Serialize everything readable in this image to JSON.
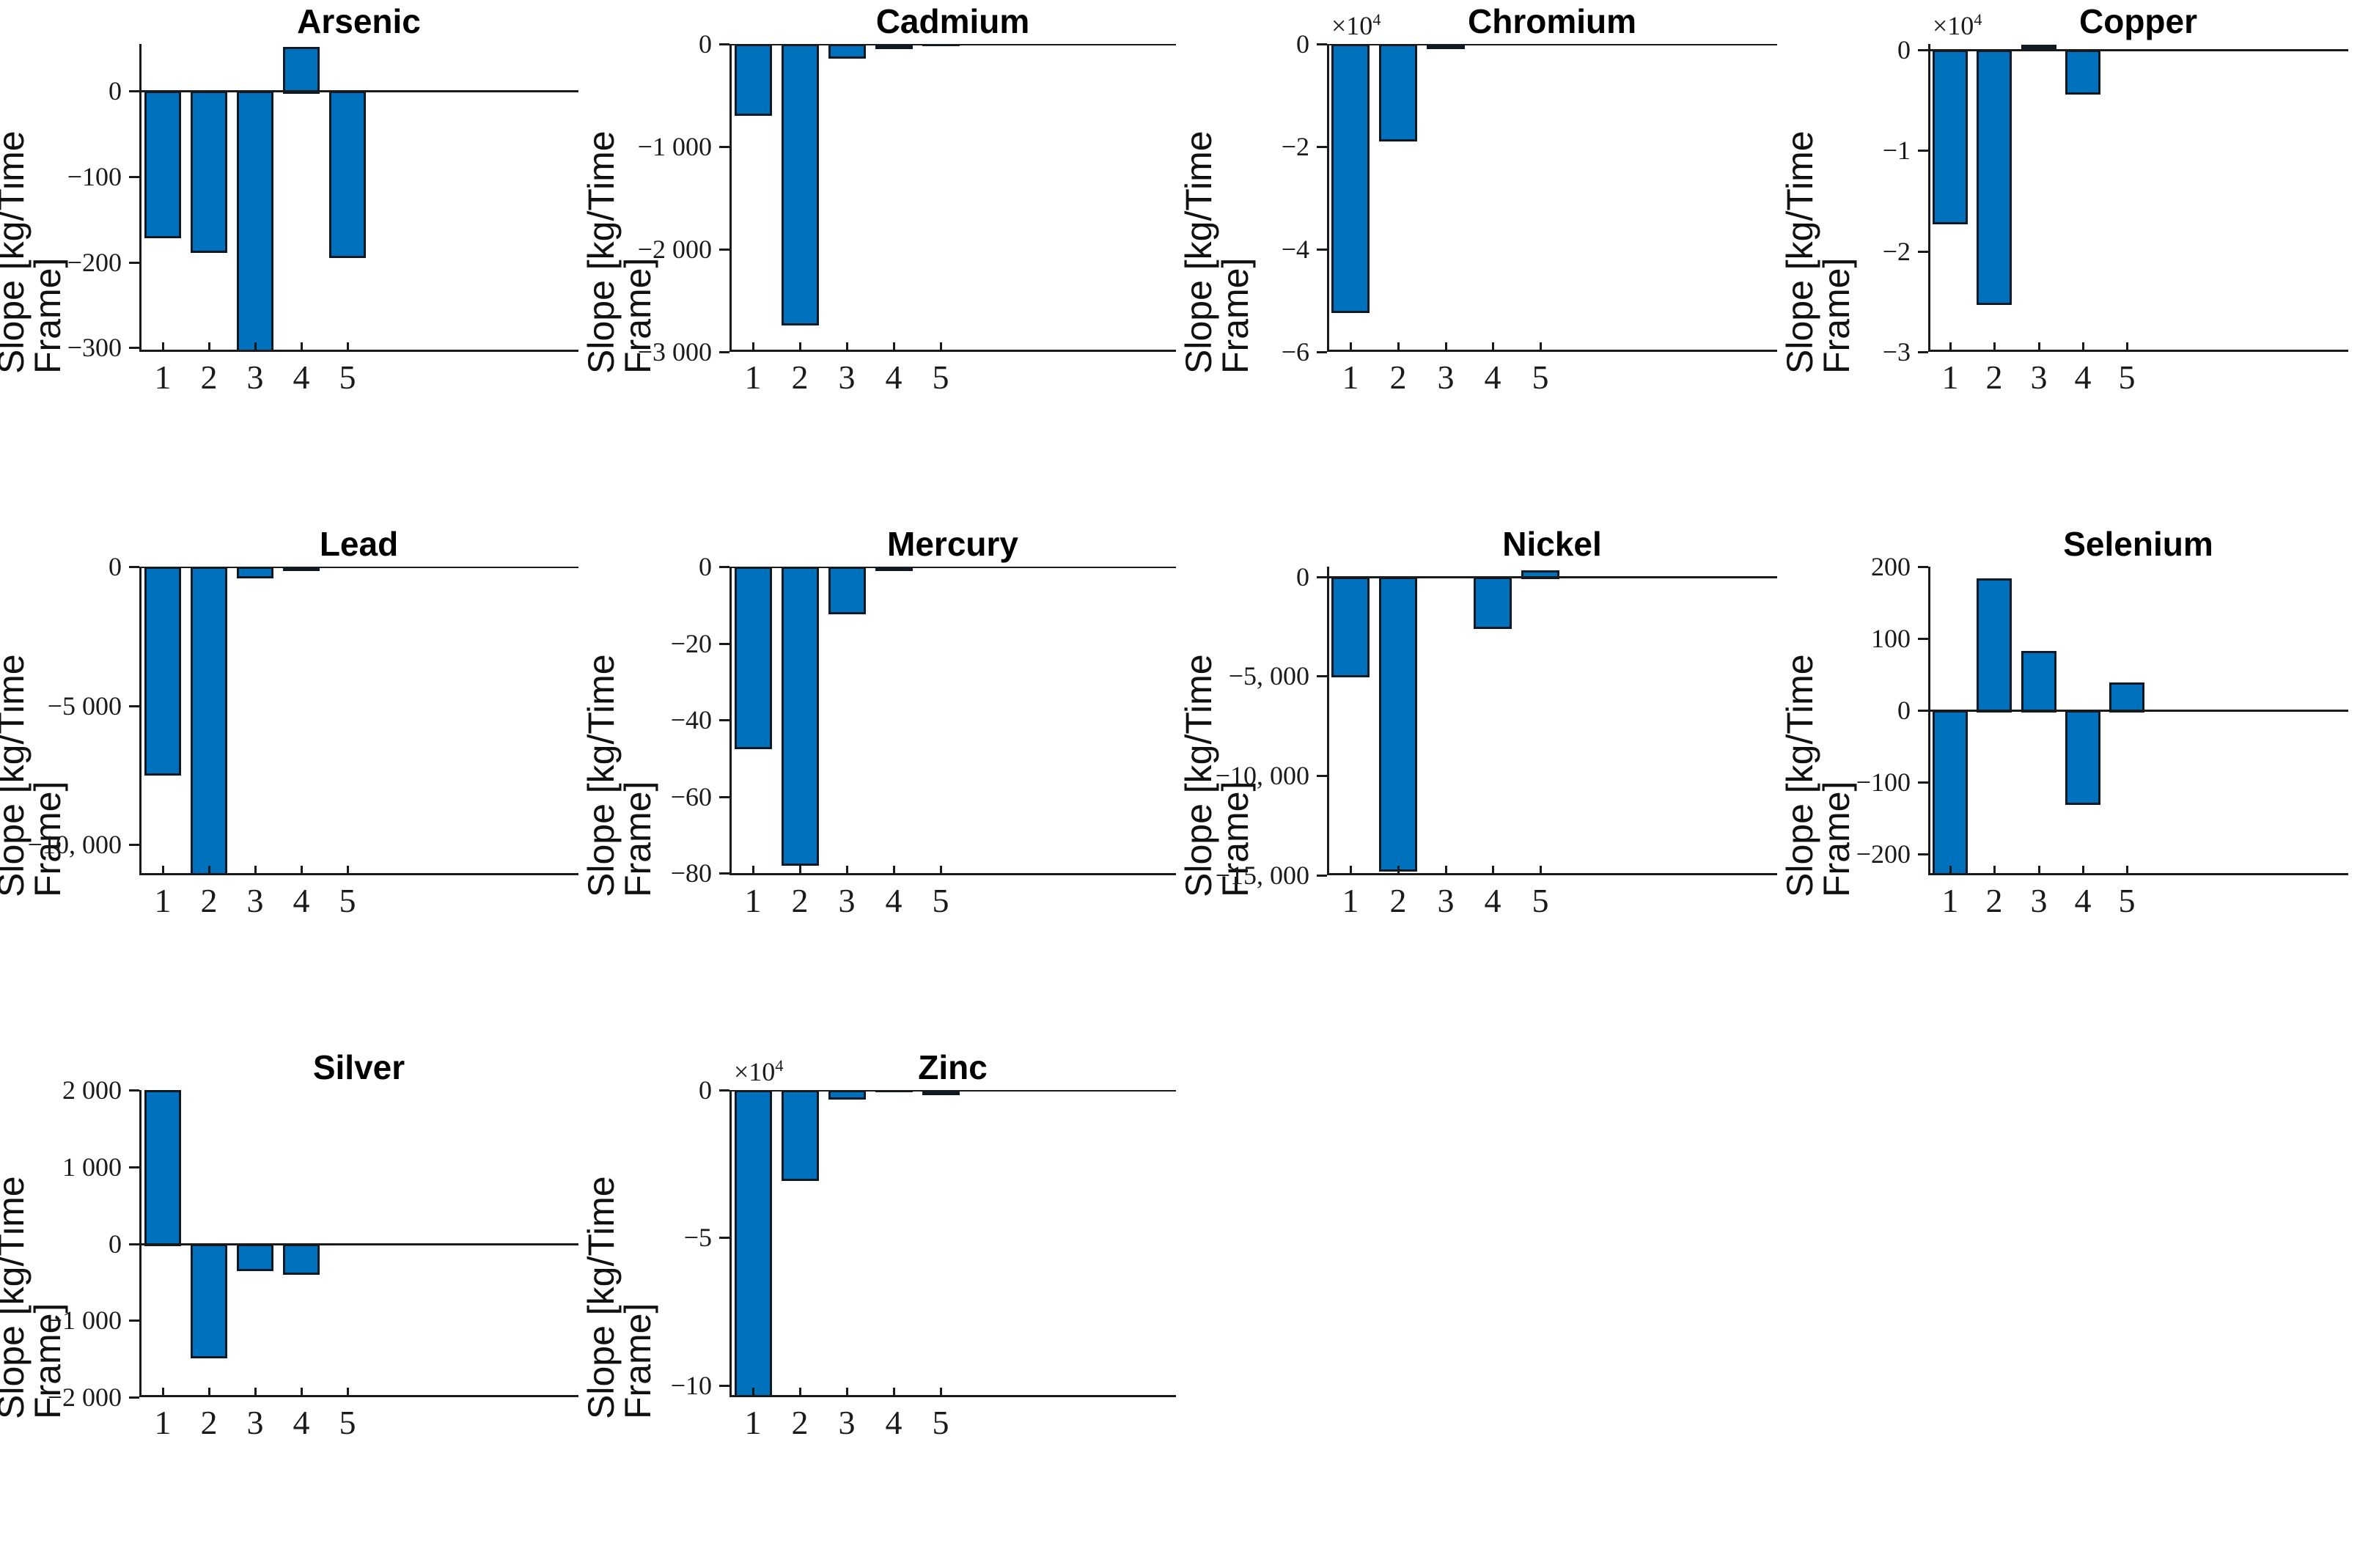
{
  "figure": {
    "ylabel": "Slope [kg/Time Frame]",
    "xticklabels": [
      "1",
      "2",
      "3",
      "4",
      "5"
    ],
    "colors": {
      "bar_fill": "#0072BD",
      "bar_edge": "#0d1a26",
      "axis": "#1a1a1a",
      "text": "#1a1a1a",
      "background": "#ffffff"
    }
  },
  "chart_data": [
    {
      "type": "bar",
      "title": "Arsenic",
      "ylabel": "Slope [kg/Time Frame]",
      "categories": [
        "1",
        "2",
        "3",
        "4",
        "5"
      ],
      "values": [
        -170,
        -187,
        -320,
        52,
        -193
      ],
      "ylim": [
        -305,
        55
      ],
      "yticks": [
        {
          "v": 0,
          "label": "0"
        },
        {
          "v": -100,
          "label": "−100"
        },
        {
          "v": -200,
          "label": "−200"
        },
        {
          "v": -300,
          "label": "−300"
        }
      ],
      "exponent": null
    },
    {
      "type": "bar",
      "title": "Cadmium",
      "ylabel": "Slope [kg/Time Frame]",
      "categories": [
        "1",
        "2",
        "3",
        "4",
        "5"
      ],
      "values": [
        -680,
        -2720,
        -120,
        -50,
        -20
      ],
      "ylim": [
        -3000,
        0
      ],
      "yticks": [
        {
          "v": 0,
          "label": "0"
        },
        {
          "v": -1000,
          "label": "−1 000"
        },
        {
          "v": -2000,
          "label": "−2 000"
        },
        {
          "v": -3000,
          "label": "−3 000"
        }
      ],
      "exponent": null
    },
    {
      "type": "bar",
      "title": "Chromium",
      "ylabel": "Slope [kg/Time Frame]",
      "categories": [
        "1",
        "2",
        "3",
        "4",
        "5"
      ],
      "values": [
        -52000,
        -18500,
        -1000,
        -300,
        -100
      ],
      "ylim": [
        -60000,
        0
      ],
      "yticks": [
        {
          "v": 0,
          "label": "0"
        },
        {
          "v": -20000,
          "label": "−2"
        },
        {
          "v": -40000,
          "label": "−4"
        },
        {
          "v": -60000,
          "label": "−6"
        }
      ],
      "exponent": {
        "base": "×10",
        "power": "4"
      }
    },
    {
      "type": "bar",
      "title": "Copper",
      "ylabel": "Slope [kg/Time Frame]",
      "categories": [
        "1",
        "2",
        "3",
        "4",
        "5"
      ],
      "values": [
        -17100,
        -25100,
        500,
        -4200,
        -150
      ],
      "ylim": [
        -30000,
        600
      ],
      "yticks": [
        {
          "v": 0,
          "label": "0"
        },
        {
          "v": -10000,
          "label": "−1"
        },
        {
          "v": -20000,
          "label": "−2"
        },
        {
          "v": -30000,
          "label": "−3"
        }
      ],
      "exponent": {
        "base": "×10",
        "power": "4"
      }
    },
    {
      "type": "bar",
      "title": "Lead",
      "ylabel": "Slope [kg/Time Frame]",
      "categories": [
        "1",
        "2",
        "3",
        "4",
        "5"
      ],
      "values": [
        -7430,
        -11500,
        -330,
        -160,
        -50
      ],
      "ylim": [
        -11100,
        0
      ],
      "yticks": [
        {
          "v": 0,
          "label": "0"
        },
        {
          "v": -5000,
          "label": "−5 000"
        },
        {
          "v": -10000,
          "label": "−10, 000"
        }
      ],
      "exponent": null
    },
    {
      "type": "bar",
      "title": "Mercury",
      "ylabel": "Slope [kg/Time Frame]",
      "categories": [
        "1",
        "2",
        "3",
        "4",
        "5"
      ],
      "values": [
        -47,
        -77.5,
        -11.8,
        -1.2,
        -0.3
      ],
      "ylim": [
        -80.5,
        0
      ],
      "yticks": [
        {
          "v": 0,
          "label": "0"
        },
        {
          "v": -20,
          "label": "−20"
        },
        {
          "v": -40,
          "label": "−40"
        },
        {
          "v": -60,
          "label": "−60"
        },
        {
          "v": -80,
          "label": "−80"
        }
      ],
      "exponent": null
    },
    {
      "type": "bar",
      "title": "Nickel",
      "ylabel": "Slope [kg/Time Frame]",
      "categories": [
        "1",
        "2",
        "3",
        "4",
        "5"
      ],
      "values": [
        -4930,
        -14680,
        -60,
        -2500,
        320
      ],
      "ylim": [
        -15000,
        500
      ],
      "yticks": [
        {
          "v": 0,
          "label": "0"
        },
        {
          "v": -5000,
          "label": "−5, 000"
        },
        {
          "v": -10000,
          "label": "−10, 000"
        },
        {
          "v": -15000,
          "label": "−15, 000"
        }
      ],
      "exponent": null
    },
    {
      "type": "bar",
      "title": "Selenium",
      "ylabel": "Slope [kg/Time Frame]",
      "categories": [
        "1",
        "2",
        "3",
        "4",
        "5"
      ],
      "values": [
        -250,
        184,
        83,
        -129,
        39
      ],
      "ylim": [
        -230,
        200
      ],
      "yticks": [
        {
          "v": 200,
          "label": "200"
        },
        {
          "v": 100,
          "label": "100"
        },
        {
          "v": 0,
          "label": "0"
        },
        {
          "v": -100,
          "label": "−100"
        },
        {
          "v": -200,
          "label": "−200"
        }
      ],
      "exponent": null
    },
    {
      "type": "bar",
      "title": "Silver",
      "ylabel": "Slope [kg/Time Frame]",
      "categories": [
        "1",
        "2",
        "3",
        "4",
        "5"
      ],
      "values": [
        2000,
        -1460,
        -320,
        -375,
        -15
      ],
      "ylim": [
        -2000,
        2000
      ],
      "yticks": [
        {
          "v": 2000,
          "label": "2 000"
        },
        {
          "v": 1000,
          "label": "1 000"
        },
        {
          "v": 0,
          "label": "0"
        },
        {
          "v": -1000,
          "label": "−1 000"
        },
        {
          "v": -2000,
          "label": "−2 000"
        }
      ],
      "exponent": null
    },
    {
      "type": "bar",
      "title": "Zinc",
      "ylabel": "Slope [kg/Time Frame]",
      "categories": [
        "1",
        "2",
        "3",
        "4",
        "5"
      ],
      "values": [
        -106000,
        -30000,
        -2500,
        -800,
        -1800
      ],
      "ylim": [
        -104000,
        0
      ],
      "yticks": [
        {
          "v": 0,
          "label": "0"
        },
        {
          "v": -50000,
          "label": "−5"
        },
        {
          "v": -100000,
          "label": "−10"
        }
      ],
      "exponent": {
        "base": "×10",
        "power": "4"
      }
    }
  ]
}
